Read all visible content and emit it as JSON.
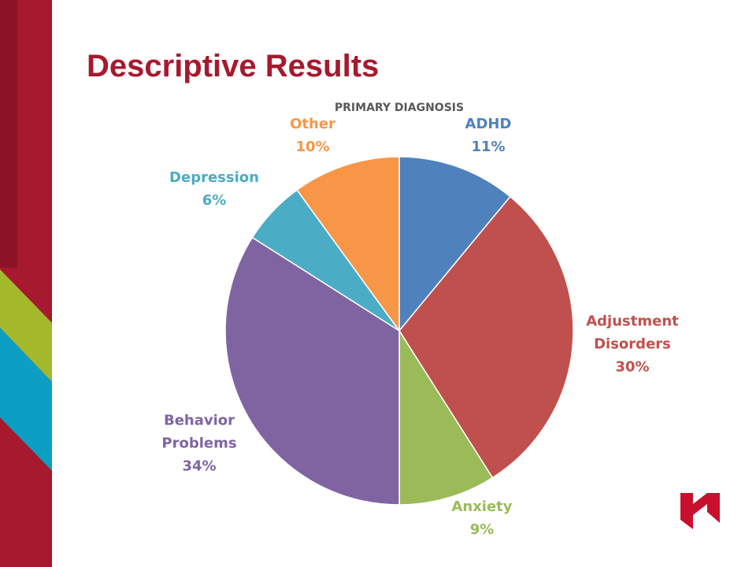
{
  "slide_title": "Descriptive Results",
  "chart_data": {
    "type": "pie",
    "title": "PRIMARY DIAGNOSIS",
    "categories": [
      "ADHD",
      "Adjustment Disorders",
      "Anxiety",
      "Behavior Problems",
      "Depression",
      "Other"
    ],
    "values": [
      11,
      30,
      9,
      34,
      6,
      10
    ],
    "value_labels": [
      "11%",
      "30%",
      "9%",
      "34%",
      "6%",
      "10%"
    ],
    "colors": [
      "#4f81bd",
      "#c0504d",
      "#9bbb59",
      "#8064a2",
      "#4bacc6",
      "#f79646"
    ]
  }
}
